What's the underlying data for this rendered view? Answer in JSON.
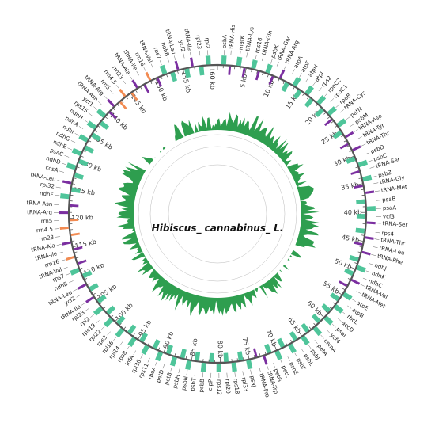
{
  "title": "Hibiscus_ cannabinus_ L.",
  "colors": {
    "cds": "#4fc59a",
    "trna": "#7b2fa0",
    "rrna": "#f28b52",
    "backbone": "#555555",
    "gc_content": "#2e9e4f",
    "gc_skew_main": "#8ec9e6",
    "gc_skew_minor": "#a6d99a"
  },
  "kb_marks": [
    "5 kb",
    "10 kb",
    "15 kb",
    "20 kb",
    "25 kb",
    "30 kb",
    "35 kb",
    "40 kb",
    "45 kb",
    "50 kb",
    "55 kb",
    "60 kb",
    "65 kb",
    "70 kb",
    "75 kb",
    "80 kb",
    "85 kb",
    "90 kb",
    "95 kb",
    "100 kb",
    "105 kb",
    "110 kb",
    "115 kb",
    "120 kb",
    "125 kb",
    "130 kb",
    "135 kb",
    "140 kb",
    "145 kb",
    "150 kb",
    "155 kb",
    "160 kb"
  ],
  "genes": [
    {
      "name": "psbA",
      "type": "cds"
    },
    {
      "name": "tRNA-His",
      "type": "trna"
    },
    {
      "name": "matK",
      "type": "cds"
    },
    {
      "name": "tRNA-Lys",
      "type": "trna"
    },
    {
      "name": "rps16",
      "type": "cds"
    },
    {
      "name": "tRNA-Gln",
      "type": "trna"
    },
    {
      "name": "psbK",
      "type": "cds"
    },
    {
      "name": "tRNA-Gly",
      "type": "trna"
    },
    {
      "name": "tRNA-Arg",
      "type": "trna"
    },
    {
      "name": "atpA",
      "type": "cds"
    },
    {
      "name": "atpF",
      "type": "cds"
    },
    {
      "name": "atpH",
      "type": "cds"
    },
    {
      "name": "atpI",
      "type": "cds"
    },
    {
      "name": "rps2",
      "type": "cds"
    },
    {
      "name": "rpoC2",
      "type": "cds"
    },
    {
      "name": "rpoC1",
      "type": "cds"
    },
    {
      "name": "rpoB",
      "type": "cds"
    },
    {
      "name": "tRNA-Cys",
      "type": "trna"
    },
    {
      "name": "petN",
      "type": "cds"
    },
    {
      "name": "psbM",
      "type": "cds"
    },
    {
      "name": "tRNA-Asp",
      "type": "trna"
    },
    {
      "name": "tRNA-Tyr",
      "type": "trna"
    },
    {
      "name": "tRNA-Thr",
      "type": "trna"
    },
    {
      "name": "psbD",
      "type": "cds"
    },
    {
      "name": "psbC",
      "type": "cds"
    },
    {
      "name": "tRNA-Ser",
      "type": "trna"
    },
    {
      "name": "psbZ",
      "type": "cds"
    },
    {
      "name": "tRNA-Gly",
      "type": "trna"
    },
    {
      "name": "tRNA-Met",
      "type": "trna"
    },
    {
      "name": "psaB",
      "type": "cds"
    },
    {
      "name": "psaA",
      "type": "cds"
    },
    {
      "name": "ycf3",
      "type": "cds"
    },
    {
      "name": "tRNA-Ser",
      "type": "trna"
    },
    {
      "name": "rps4",
      "type": "cds"
    },
    {
      "name": "tRNA-Thr",
      "type": "trna"
    },
    {
      "name": "tRNA-Leu",
      "type": "trna"
    },
    {
      "name": "tRNA-Phe",
      "type": "trna"
    },
    {
      "name": "ndhJ",
      "type": "cds"
    },
    {
      "name": "ndhK",
      "type": "cds"
    },
    {
      "name": "ndhC",
      "type": "cds"
    },
    {
      "name": "tRNA-Val",
      "type": "trna"
    },
    {
      "name": "tRNA-Met",
      "type": "trna"
    },
    {
      "name": "atpE",
      "type": "cds"
    },
    {
      "name": "atpB",
      "type": "cds"
    },
    {
      "name": "rbcL",
      "type": "cds"
    },
    {
      "name": "accD",
      "type": "cds"
    },
    {
      "name": "psaI",
      "type": "cds"
    },
    {
      "name": "ycf4",
      "type": "cds"
    },
    {
      "name": "cemA",
      "type": "cds"
    },
    {
      "name": "petA",
      "type": "cds"
    },
    {
      "name": "psbJ",
      "type": "cds"
    },
    {
      "name": "psbL",
      "type": "cds"
    },
    {
      "name": "psbF",
      "type": "cds"
    },
    {
      "name": "psbE",
      "type": "cds"
    },
    {
      "name": "petL",
      "type": "cds"
    },
    {
      "name": "petG",
      "type": "cds"
    },
    {
      "name": "tRNA-Trp",
      "type": "trna"
    },
    {
      "name": "tRNA-Pro",
      "type": "trna"
    },
    {
      "name": "psaJ",
      "type": "cds"
    },
    {
      "name": "rpl33",
      "type": "cds"
    },
    {
      "name": "rps18",
      "type": "cds"
    },
    {
      "name": "rpl20",
      "type": "cds"
    },
    {
      "name": "rps12",
      "type": "cds"
    },
    {
      "name": "clpP",
      "type": "cds"
    },
    {
      "name": "psbB",
      "type": "cds"
    },
    {
      "name": "psbT",
      "type": "cds"
    },
    {
      "name": "psbN",
      "type": "cds"
    },
    {
      "name": "psbH",
      "type": "cds"
    },
    {
      "name": "petB",
      "type": "cds"
    },
    {
      "name": "petD",
      "type": "cds"
    },
    {
      "name": "rpoA",
      "type": "cds"
    },
    {
      "name": "rps11",
      "type": "cds"
    },
    {
      "name": "rpl36",
      "type": "cds"
    },
    {
      "name": "infA",
      "type": "cds"
    },
    {
      "name": "rps8",
      "type": "cds"
    },
    {
      "name": "rpl14",
      "type": "cds"
    },
    {
      "name": "rpl16",
      "type": "cds"
    },
    {
      "name": "rps3",
      "type": "cds"
    },
    {
      "name": "rpl22",
      "type": "cds"
    },
    {
      "name": "rps19",
      "type": "cds"
    },
    {
      "name": "rpl2",
      "type": "cds"
    },
    {
      "name": "rpl23",
      "type": "cds"
    },
    {
      "name": "tRNA-Ile",
      "type": "trna"
    },
    {
      "name": "ycf2",
      "type": "cds"
    },
    {
      "name": "tRNA-Leu",
      "type": "trna"
    },
    {
      "name": "ndhB",
      "type": "cds"
    },
    {
      "name": "rps7",
      "type": "cds"
    },
    {
      "name": "tRNA-Val",
      "type": "trna"
    },
    {
      "name": "rrn16",
      "type": "rrna"
    },
    {
      "name": "tRNA-Ile",
      "type": "trna"
    },
    {
      "name": "tRNA-Ala",
      "type": "trna"
    },
    {
      "name": "rrn23",
      "type": "rrna"
    },
    {
      "name": "rrn4.5",
      "type": "rrna"
    },
    {
      "name": "rrn5",
      "type": "rrna"
    },
    {
      "name": "tRNA-Arg",
      "type": "trna"
    },
    {
      "name": "tRNA-Asn",
      "type": "trna"
    },
    {
      "name": "ndhF",
      "type": "cds"
    },
    {
      "name": "rpl32",
      "type": "cds"
    },
    {
      "name": "tRNA-Leu",
      "type": "trna"
    },
    {
      "name": "ccsA",
      "type": "cds"
    },
    {
      "name": "ndhD",
      "type": "cds"
    },
    {
      "name": "psaC",
      "type": "cds"
    },
    {
      "name": "ndhE",
      "type": "cds"
    },
    {
      "name": "ndhG",
      "type": "cds"
    },
    {
      "name": "ndhI",
      "type": "cds"
    },
    {
      "name": "ndhA",
      "type": "cds"
    },
    {
      "name": "ndhH",
      "type": "cds"
    },
    {
      "name": "rps15",
      "type": "cds"
    },
    {
      "name": "ycf1",
      "type": "cds"
    },
    {
      "name": "tRNA-Asn",
      "type": "trna"
    },
    {
      "name": "tRNA-Arg",
      "type": "trna"
    },
    {
      "name": "rrn5",
      "type": "rrna"
    },
    {
      "name": "rrn4.5",
      "type": "rrna"
    },
    {
      "name": "rrn23",
      "type": "rrna"
    },
    {
      "name": "tRNA-Ala",
      "type": "trna"
    },
    {
      "name": "tRNA-Ile",
      "type": "trna"
    },
    {
      "name": "rrn16",
      "type": "rrna"
    },
    {
      "name": "tRNA-Val",
      "type": "trna"
    },
    {
      "name": "rps7",
      "type": "cds"
    },
    {
      "name": "ndhB",
      "type": "cds"
    },
    {
      "name": "tRNA-Leu",
      "type": "trna"
    },
    {
      "name": "ycf2",
      "type": "cds"
    },
    {
      "name": "tRNA-Ile",
      "type": "trna"
    },
    {
      "name": "rpl23",
      "type": "cds"
    },
    {
      "name": "rpl2",
      "type": "cds"
    }
  ]
}
